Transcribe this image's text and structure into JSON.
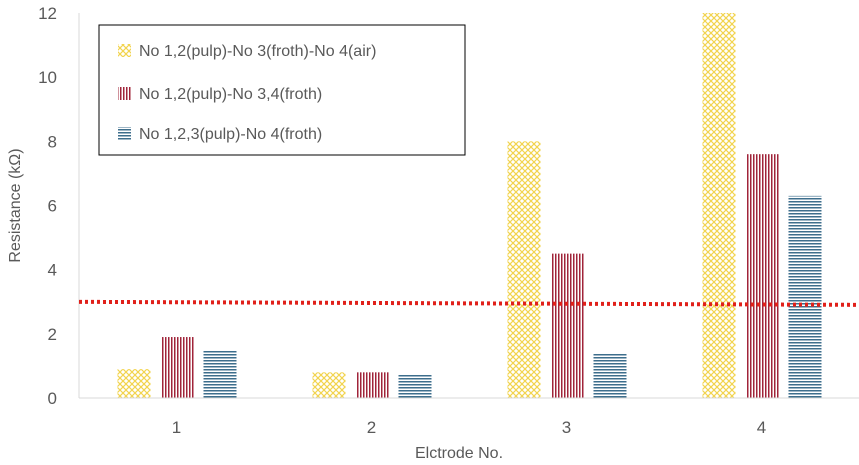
{
  "chart_data": {
    "type": "bar",
    "categories": [
      "1",
      "2",
      "3",
      "4"
    ],
    "series": [
      {
        "name": "No 1,2(pulp)-No 3(froth)-No 4(air)",
        "values": [
          0.9,
          0.8,
          8.0,
          12.0
        ],
        "color": "#f2d44e",
        "pattern": "crosshatch"
      },
      {
        "name": "No 1,2(pulp)-No 3,4(froth)",
        "values": [
          1.9,
          0.8,
          4.5,
          7.6
        ],
        "color": "#a0243a",
        "pattern": "vertical-lines"
      },
      {
        "name": "No 1,2,3(pulp)-No 4(froth)",
        "values": [
          1.5,
          0.75,
          1.4,
          6.3
        ],
        "color": "#3d6e8c",
        "pattern": "horizontal-lines"
      }
    ],
    "reference_line": {
      "value": 2.95,
      "color": "#e0201a",
      "style": "dotted"
    },
    "xlabel": "Elctrode No.",
    "ylabel": "Resistance (kΩ)",
    "ylim": [
      0,
      12
    ],
    "yticks": [
      0,
      2,
      4,
      6,
      8,
      10,
      12
    ],
    "grid": false,
    "legend_position": "top-left"
  }
}
